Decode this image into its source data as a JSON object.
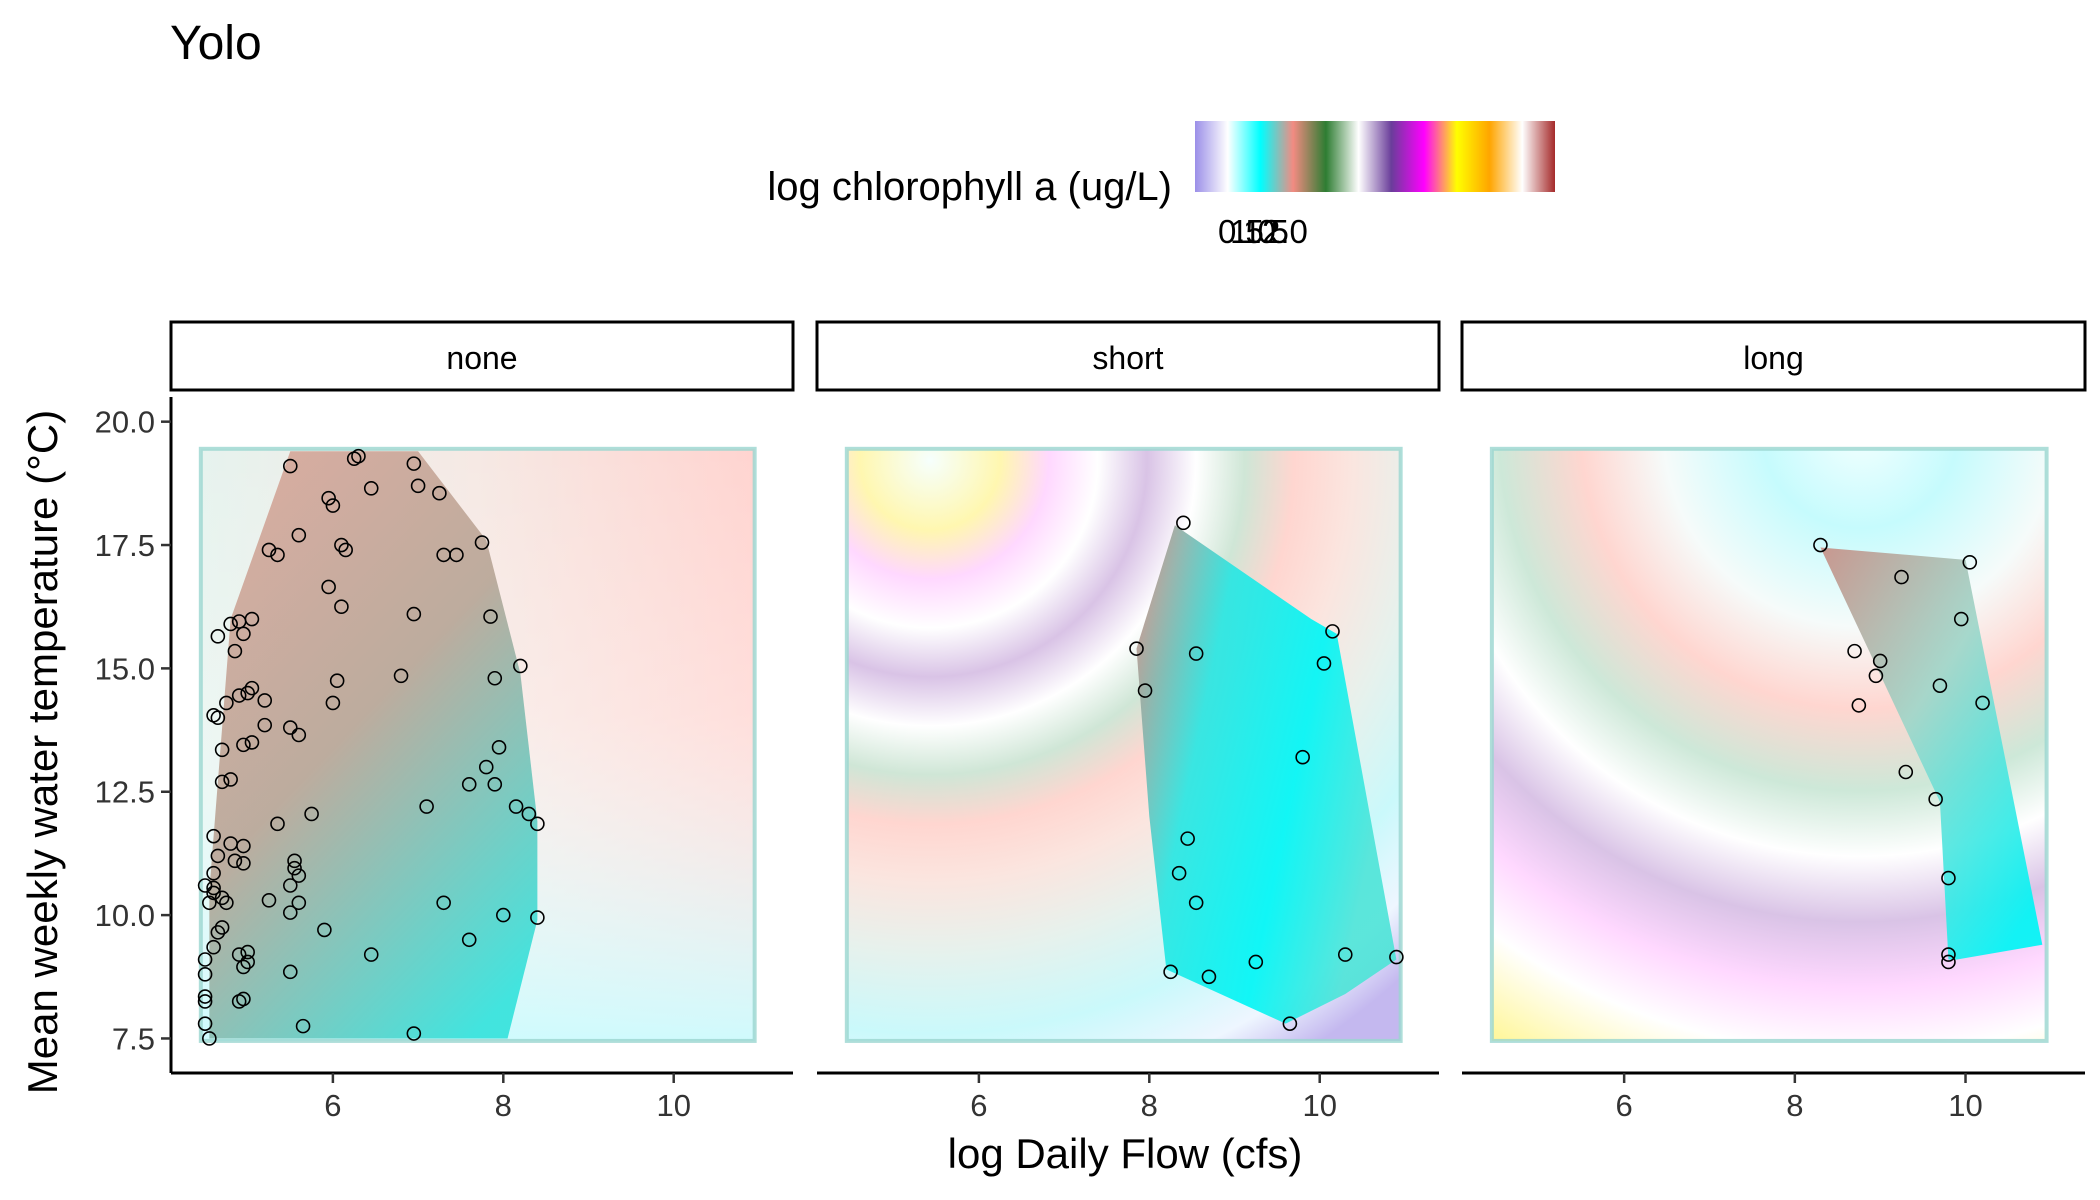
{
  "chart_data": {
    "type": "scatter",
    "title": "Yolo",
    "xlabel": "log Daily Flow (cfs)",
    "ylabel": "Mean weekly water temperature (°C)",
    "xlim": [
      4.1,
      11.4
    ],
    "ylim": [
      6.8,
      20.5
    ],
    "x_ticks": [
      6,
      8,
      10
    ],
    "y_ticks": [
      7.5,
      10.0,
      12.5,
      15.0,
      17.5,
      20.0
    ],
    "x_tick_labels": [
      "6",
      "8",
      "10"
    ],
    "y_tick_labels": [
      "7.5",
      "10.0",
      "12.5",
      "15.0",
      "17.5",
      "20.0"
    ],
    "legend": {
      "title": "log chlorophyll a (ug/L)",
      "position": "top",
      "tick_labels": [
        "0.5",
        "1.0",
        "1.5",
        "2.0"
      ],
      "colors": [
        "#9b8fe8",
        "#ffffff",
        "#00ffff",
        "#f28b82",
        "#2e7d32",
        "#ffffff",
        "#6a3d9a",
        "#ff00ff",
        "#ffff00",
        "#ffa500",
        "#ffffff",
        "#a52a2a"
      ]
    },
    "grid": false,
    "panels": [
      {
        "name": "none",
        "hull": [
          [
            4.55,
            7.5
          ],
          [
            8.05,
            7.5
          ],
          [
            8.4,
            9.9
          ],
          [
            8.4,
            11.9
          ],
          [
            8.2,
            14.9
          ],
          [
            7.8,
            17.6
          ],
          [
            7.0,
            19.4
          ],
          [
            6.4,
            19.4
          ],
          [
            5.5,
            19.4
          ],
          [
            4.8,
            16.0
          ],
          [
            4.55,
            10.5
          ]
        ],
        "points": [
          [
            5.5,
            19.1
          ],
          [
            6.25,
            19.25
          ],
          [
            6.3,
            19.3
          ],
          [
            6.95,
            19.15
          ],
          [
            7.25,
            18.55
          ],
          [
            6.0,
            18.3
          ],
          [
            5.95,
            18.45
          ],
          [
            6.45,
            18.65
          ],
          [
            7.0,
            18.7
          ],
          [
            5.6,
            17.7
          ],
          [
            5.25,
            17.4
          ],
          [
            5.35,
            17.3
          ],
          [
            6.1,
            17.5
          ],
          [
            6.15,
            17.4
          ],
          [
            7.3,
            17.3
          ],
          [
            7.45,
            17.3
          ],
          [
            7.75,
            17.55
          ],
          [
            5.95,
            16.65
          ],
          [
            6.1,
            16.25
          ],
          [
            6.95,
            16.1
          ],
          [
            7.85,
            16.05
          ],
          [
            4.9,
            15.95
          ],
          [
            4.8,
            15.9
          ],
          [
            5.05,
            16.0
          ],
          [
            4.65,
            15.65
          ],
          [
            4.95,
            15.7
          ],
          [
            4.85,
            15.35
          ],
          [
            8.2,
            15.05
          ],
          [
            6.8,
            14.85
          ],
          [
            7.9,
            14.8
          ],
          [
            6.05,
            14.75
          ],
          [
            5.05,
            14.6
          ],
          [
            5.0,
            14.5
          ],
          [
            4.9,
            14.45
          ],
          [
            5.2,
            14.35
          ],
          [
            4.75,
            14.3
          ],
          [
            6.0,
            14.3
          ],
          [
            4.6,
            14.05
          ],
          [
            4.65,
            14.0
          ],
          [
            5.2,
            13.85
          ],
          [
            5.5,
            13.8
          ],
          [
            5.6,
            13.65
          ],
          [
            5.05,
            13.5
          ],
          [
            4.95,
            13.45
          ],
          [
            4.7,
            13.35
          ],
          [
            7.95,
            13.4
          ],
          [
            7.8,
            13.0
          ],
          [
            7.6,
            12.65
          ],
          [
            7.9,
            12.65
          ],
          [
            4.8,
            12.75
          ],
          [
            4.7,
            12.7
          ],
          [
            7.1,
            12.2
          ],
          [
            8.15,
            12.2
          ],
          [
            8.3,
            12.05
          ],
          [
            5.75,
            12.05
          ],
          [
            5.35,
            11.85
          ],
          [
            8.4,
            11.85
          ],
          [
            4.6,
            11.6
          ],
          [
            4.8,
            11.45
          ],
          [
            4.95,
            11.4
          ],
          [
            4.65,
            11.2
          ],
          [
            5.55,
            11.1
          ],
          [
            4.85,
            11.1
          ],
          [
            4.95,
            11.05
          ],
          [
            5.55,
            10.95
          ],
          [
            5.6,
            10.8
          ],
          [
            4.6,
            10.85
          ],
          [
            4.6,
            10.55
          ],
          [
            5.5,
            10.6
          ],
          [
            4.5,
            10.6
          ],
          [
            4.6,
            10.45
          ],
          [
            4.7,
            10.35
          ],
          [
            4.75,
            10.25
          ],
          [
            5.25,
            10.3
          ],
          [
            5.6,
            10.25
          ],
          [
            7.3,
            10.25
          ],
          [
            4.55,
            10.25
          ],
          [
            5.5,
            10.05
          ],
          [
            8.0,
            10.0
          ],
          [
            8.4,
            9.95
          ],
          [
            4.7,
            9.75
          ],
          [
            5.9,
            9.7
          ],
          [
            4.65,
            9.65
          ],
          [
            7.6,
            9.5
          ],
          [
            4.6,
            9.35
          ],
          [
            5.0,
            9.25
          ],
          [
            4.9,
            9.2
          ],
          [
            6.45,
            9.2
          ],
          [
            4.5,
            9.1
          ],
          [
            5.0,
            9.05
          ],
          [
            4.95,
            8.95
          ],
          [
            5.5,
            8.85
          ],
          [
            4.5,
            8.8
          ],
          [
            4.5,
            8.35
          ],
          [
            4.5,
            8.25
          ],
          [
            4.95,
            8.3
          ],
          [
            4.9,
            8.25
          ],
          [
            4.5,
            7.8
          ],
          [
            5.65,
            7.75
          ],
          [
            6.95,
            7.6
          ],
          [
            4.55,
            7.5
          ]
        ]
      },
      {
        "name": "short",
        "hull": [
          [
            8.3,
            17.9
          ],
          [
            9.9,
            16.0
          ],
          [
            10.2,
            15.7
          ],
          [
            10.9,
            9.1
          ],
          [
            10.3,
            8.4
          ],
          [
            9.6,
            7.8
          ],
          [
            8.2,
            8.9
          ],
          [
            8.0,
            12.0
          ],
          [
            7.85,
            15.4
          ]
        ],
        "points": [
          [
            8.4,
            17.95
          ],
          [
            7.85,
            15.4
          ],
          [
            8.55,
            15.3
          ],
          [
            10.15,
            15.75
          ],
          [
            10.05,
            15.1
          ],
          [
            7.95,
            14.55
          ],
          [
            9.8,
            13.2
          ],
          [
            8.45,
            11.55
          ],
          [
            8.35,
            10.85
          ],
          [
            8.55,
            10.25
          ],
          [
            10.3,
            9.2
          ],
          [
            10.9,
            9.15
          ],
          [
            9.25,
            9.05
          ],
          [
            8.25,
            8.85
          ],
          [
            8.7,
            8.75
          ],
          [
            9.65,
            7.8
          ]
        ]
      },
      {
        "name": "long",
        "hull": [
          [
            8.3,
            17.45
          ],
          [
            10.0,
            17.2
          ],
          [
            10.9,
            9.4
          ],
          [
            9.9,
            9.1
          ],
          [
            9.8,
            9.1
          ],
          [
            9.7,
            12.3
          ]
        ],
        "points": [
          [
            8.3,
            17.5
          ],
          [
            10.05,
            17.15
          ],
          [
            9.25,
            16.85
          ],
          [
            9.95,
            16.0
          ],
          [
            8.7,
            15.35
          ],
          [
            9.0,
            15.15
          ],
          [
            8.95,
            14.85
          ],
          [
            9.7,
            14.65
          ],
          [
            10.2,
            14.3
          ],
          [
            8.75,
            14.25
          ],
          [
            9.3,
            12.9
          ],
          [
            9.65,
            12.35
          ],
          [
            9.8,
            10.75
          ],
          [
            9.8,
            9.2
          ],
          [
            9.8,
            9.05
          ]
        ]
      }
    ]
  }
}
